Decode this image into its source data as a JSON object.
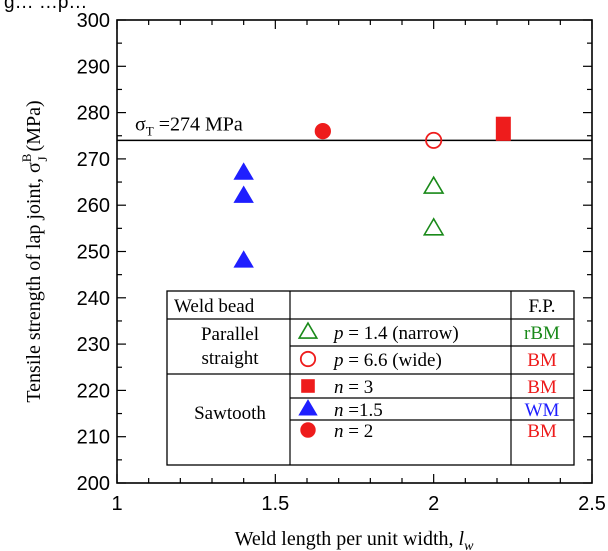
{
  "chart_data": {
    "type": "scatter",
    "title": "",
    "xlabel": "Weld length per unit width,",
    "xlabel_var": "l",
    "xlabel_sub": "w",
    "ylabel": "Tensile strength of lap joint,",
    "ylabel_var": "σ",
    "ylabel_sub": "J",
    "ylabel_sup": "B",
    "ylabel_unit": "(MPa)",
    "xlim": [
      1,
      2.5
    ],
    "ylim": [
      200,
      300
    ],
    "xticks": [
      "1",
      "1.5",
      "2",
      "2.5"
    ],
    "yticks": [
      "200",
      "210",
      "220",
      "230",
      "240",
      "250",
      "260",
      "270",
      "280",
      "290",
      "300"
    ],
    "reference_line": {
      "y": 274,
      "label_symbol": "σ",
      "label_sub": "T",
      "label_text": "=274 MPa"
    },
    "series": [
      {
        "name": "p = 1.4 (narrow)",
        "marker": "triangle-open",
        "color": "#1a8a1a",
        "fp": "rBM",
        "fp_color": "#1a8a1a",
        "points": [
          {
            "x": 2.0,
            "y": 264
          },
          {
            "x": 2.0,
            "y": 255
          }
        ]
      },
      {
        "name": "p = 6.6 (wide)",
        "marker": "circle-open",
        "color": "#ee1c1c",
        "fp": "BM",
        "fp_color": "#ee1c1c",
        "points": [
          {
            "x": 2.0,
            "y": 274
          }
        ]
      },
      {
        "name": "n = 3",
        "marker": "square",
        "color": "#ee1c1c",
        "fp": "BM",
        "fp_color": "#ee1c1c",
        "points": [
          {
            "x": 2.22,
            "y": 276
          }
        ]
      },
      {
        "name": "n = 1.5",
        "marker": "triangle",
        "color": "#1f1fff",
        "fp": "WM",
        "fp_color": "#1f1fff",
        "points": [
          {
            "x": 1.4,
            "y": 267
          },
          {
            "x": 1.4,
            "y": 262
          },
          {
            "x": 1.4,
            "y": 248
          }
        ]
      },
      {
        "name": "n = 2",
        "marker": "circle",
        "color": "#ee1c1c",
        "fp": "BM",
        "fp_color": "#ee1c1c",
        "points": [
          {
            "x": 1.65,
            "y": 276
          }
        ]
      }
    ],
    "legend": {
      "placement": "bottom-right",
      "header_bead": "Weld bead",
      "header_fp": "F.P.",
      "group_parallel_line1": "Parallel",
      "group_parallel_line2": "straight",
      "group_sawtooth": "Sawtooth",
      "rows": [
        {
          "var": "p",
          "text": "= 1.4 (narrow)"
        },
        {
          "var": "p",
          "text": "= 6.6 (wide)"
        },
        {
          "var": "n",
          "text": "= 3"
        },
        {
          "var": "n",
          "text": "=1.5"
        },
        {
          "var": "n",
          "text": "= 2"
        }
      ]
    },
    "partial_text_top": "g… …p…"
  }
}
